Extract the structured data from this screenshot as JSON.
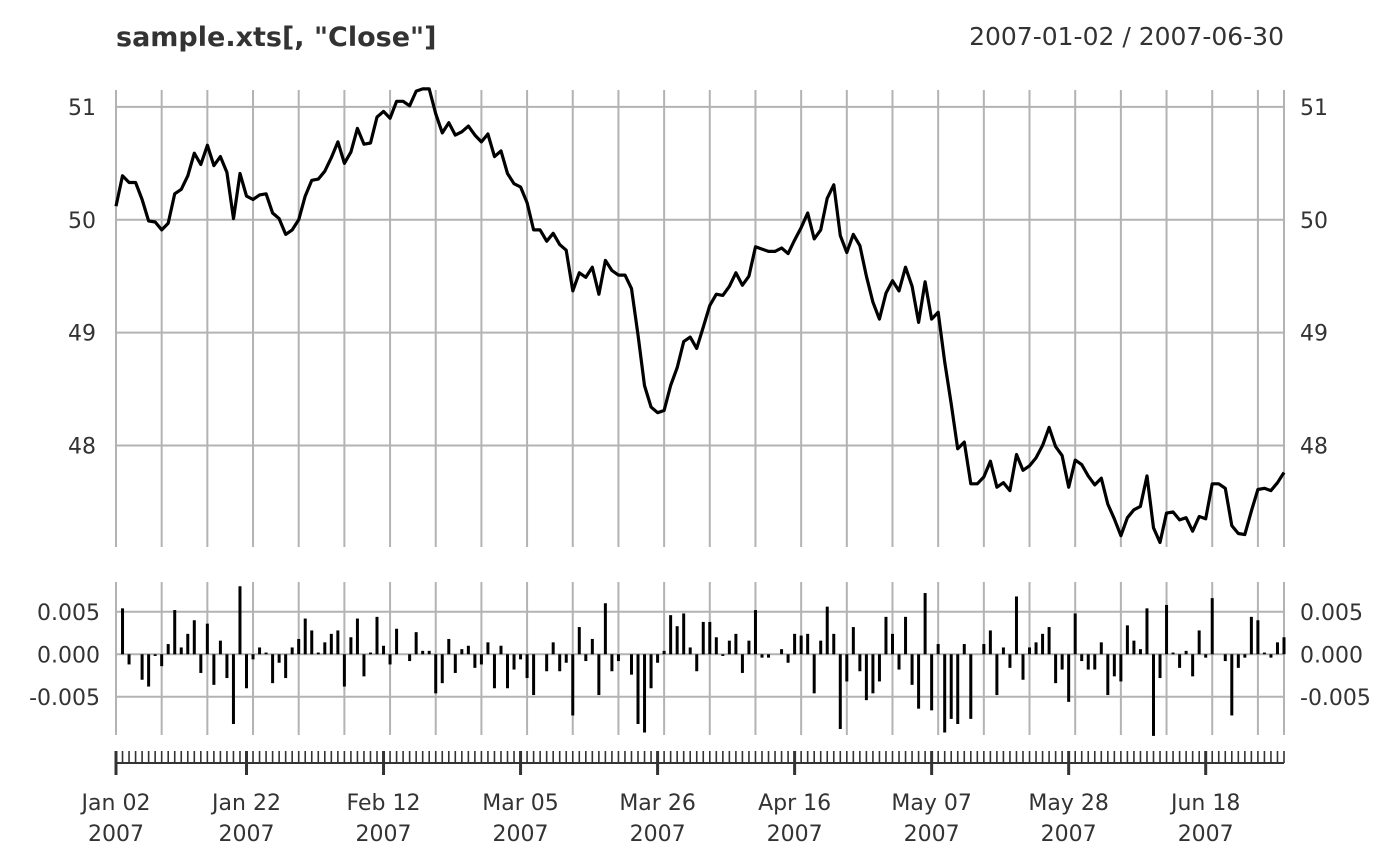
{
  "header": {
    "title": "sample.xts[, \"Close\"]",
    "date_range": "2007-01-02 / 2007-06-30"
  },
  "colors": {
    "line": "#000000",
    "grid": "#b3b3b3",
    "text": "#333333",
    "axis": "#333333"
  },
  "chart_data": [
    {
      "type": "line",
      "title": "sample.xts[, \"Close\"]",
      "subtitle": "2007-01-02 / 2007-06-30",
      "grid": true,
      "ylim": [
        47.1,
        51.15
      ],
      "ytick_values": [
        48,
        49,
        50,
        51
      ],
      "ytick_labels": [
        "48",
        "49",
        "50",
        "51"
      ],
      "xtick_dates": [
        "2007-01-02",
        "2007-01-22",
        "2007-02-12",
        "2007-03-05",
        "2007-03-26",
        "2007-04-16",
        "2007-05-07",
        "2007-05-28",
        "2007-06-18"
      ],
      "xtick_labels": [
        "Jan 02\n2007",
        "Jan 22\n2007",
        "Feb 12\n2007",
        "Mar 05\n2007",
        "Mar 26\n2007",
        "Apr 16\n2007",
        "May 07\n2007",
        "May 28\n2007",
        "Jun 18\n2007"
      ],
      "x": [
        "2007-01-02",
        "2007-01-03",
        "2007-01-04",
        "2007-01-05",
        "2007-01-06",
        "2007-01-07",
        "2007-01-08",
        "2007-01-09",
        "2007-01-10",
        "2007-01-11",
        "2007-01-12",
        "2007-01-13",
        "2007-01-14",
        "2007-01-15",
        "2007-01-16",
        "2007-01-17",
        "2007-01-18",
        "2007-01-19",
        "2007-01-20",
        "2007-01-21",
        "2007-01-22",
        "2007-01-23",
        "2007-01-24",
        "2007-01-25",
        "2007-01-26",
        "2007-01-27",
        "2007-01-28",
        "2007-01-29",
        "2007-01-30",
        "2007-01-31",
        "2007-02-01",
        "2007-02-02",
        "2007-02-03",
        "2007-02-04",
        "2007-02-05",
        "2007-02-06",
        "2007-02-07",
        "2007-02-08",
        "2007-02-09",
        "2007-02-10",
        "2007-02-11",
        "2007-02-12",
        "2007-02-13",
        "2007-02-14",
        "2007-02-15",
        "2007-02-16",
        "2007-02-17",
        "2007-02-18",
        "2007-02-19",
        "2007-02-20",
        "2007-02-21",
        "2007-02-22",
        "2007-02-23",
        "2007-02-24",
        "2007-02-25",
        "2007-02-26",
        "2007-02-27",
        "2007-02-28",
        "2007-03-01",
        "2007-03-02",
        "2007-03-03",
        "2007-03-04",
        "2007-03-05",
        "2007-03-06",
        "2007-03-07",
        "2007-03-08",
        "2007-03-09",
        "2007-03-10",
        "2007-03-11",
        "2007-03-12",
        "2007-03-13",
        "2007-03-14",
        "2007-03-15",
        "2007-03-16",
        "2007-03-17",
        "2007-03-18",
        "2007-03-19",
        "2007-03-20",
        "2007-03-21",
        "2007-03-22",
        "2007-03-23",
        "2007-03-24",
        "2007-03-25",
        "2007-03-26",
        "2007-03-27",
        "2007-03-28",
        "2007-03-29",
        "2007-03-30",
        "2007-03-31",
        "2007-04-01",
        "2007-04-02",
        "2007-04-03",
        "2007-04-04",
        "2007-04-05",
        "2007-04-06",
        "2007-04-07",
        "2007-04-08",
        "2007-04-09",
        "2007-04-10",
        "2007-04-11",
        "2007-04-12",
        "2007-04-13",
        "2007-04-14",
        "2007-04-15",
        "2007-04-16",
        "2007-04-17",
        "2007-04-18",
        "2007-04-19",
        "2007-04-20",
        "2007-04-21",
        "2007-04-22",
        "2007-04-23",
        "2007-04-24",
        "2007-04-25",
        "2007-04-26",
        "2007-04-27",
        "2007-04-28",
        "2007-04-29",
        "2007-04-30",
        "2007-05-01",
        "2007-05-02",
        "2007-05-03",
        "2007-05-04",
        "2007-05-05",
        "2007-05-06",
        "2007-05-07",
        "2007-05-08",
        "2007-05-09",
        "2007-05-10",
        "2007-05-11",
        "2007-05-12",
        "2007-05-13",
        "2007-05-14",
        "2007-05-15",
        "2007-05-16",
        "2007-05-17",
        "2007-05-18",
        "2007-05-19",
        "2007-05-20",
        "2007-05-21",
        "2007-05-22",
        "2007-05-23",
        "2007-05-24",
        "2007-05-25",
        "2007-05-26",
        "2007-05-27",
        "2007-05-28",
        "2007-05-29",
        "2007-05-30",
        "2007-05-31",
        "2007-06-01",
        "2007-06-02",
        "2007-06-03",
        "2007-06-04",
        "2007-06-05",
        "2007-06-06",
        "2007-06-07",
        "2007-06-08",
        "2007-06-09",
        "2007-06-10",
        "2007-06-11",
        "2007-06-12",
        "2007-06-13",
        "2007-06-14",
        "2007-06-15",
        "2007-06-16",
        "2007-06-17",
        "2007-06-18",
        "2007-06-19",
        "2007-06-20",
        "2007-06-21",
        "2007-06-22",
        "2007-06-23",
        "2007-06-24",
        "2007-06-25",
        "2007-06-26",
        "2007-06-27",
        "2007-06-28",
        "2007-06-29",
        "2007-06-30"
      ],
      "y": [
        50.12,
        50.39,
        50.33,
        50.33,
        50.18,
        49.99,
        49.98,
        49.91,
        49.97,
        50.23,
        50.27,
        50.39,
        50.59,
        50.49,
        50.66,
        50.48,
        50.56,
        50.42,
        50.01,
        50.41,
        50.21,
        50.18,
        50.22,
        50.23,
        50.06,
        50.01,
        49.87,
        49.91,
        50.0,
        50.21,
        50.35,
        50.36,
        50.43,
        50.55,
        50.69,
        50.5,
        50.6,
        50.81,
        50.67,
        50.68,
        50.91,
        50.96,
        50.9,
        51.05,
        51.05,
        51.01,
        51.14,
        51.16,
        51.16,
        50.94,
        50.77,
        50.86,
        50.75,
        50.78,
        50.83,
        50.75,
        50.69,
        50.76,
        50.56,
        50.61,
        50.41,
        50.32,
        50.29,
        50.15,
        49.91,
        49.91,
        49.81,
        49.88,
        49.78,
        49.73,
        49.37,
        49.53,
        49.49,
        49.58,
        49.34,
        49.64,
        49.55,
        49.51,
        49.51,
        49.39,
        48.98,
        48.53,
        48.34,
        48.29,
        48.31,
        48.53,
        48.69,
        48.92,
        48.96,
        48.86,
        49.05,
        49.24,
        49.34,
        49.33,
        49.41,
        49.53,
        49.42,
        49.5,
        49.76,
        49.74,
        49.72,
        49.72,
        49.75,
        49.7,
        49.82,
        49.93,
        50.06,
        49.83,
        49.91,
        50.19,
        50.31,
        49.86,
        49.71,
        49.87,
        49.77,
        49.5,
        49.27,
        49.12,
        49.35,
        49.46,
        49.37,
        49.58,
        49.41,
        49.09,
        49.45,
        49.12,
        49.18,
        48.74,
        48.37,
        47.97,
        48.03,
        47.66,
        47.66,
        47.72,
        47.86,
        47.63,
        47.67,
        47.6,
        47.92,
        47.78,
        47.82,
        47.89,
        48.0,
        48.16,
        47.99,
        47.91,
        47.63,
        47.87,
        47.83,
        47.73,
        47.65,
        47.71,
        47.48,
        47.35,
        47.2,
        47.36,
        47.43,
        47.46,
        47.73,
        47.27,
        47.14,
        47.4,
        47.41,
        47.34,
        47.36,
        47.24,
        47.37,
        47.35,
        47.66,
        47.66,
        47.62,
        47.29,
        47.22,
        47.21,
        47.42,
        47.61,
        47.62,
        47.6,
        47.67,
        47.76
      ]
    },
    {
      "type": "bar",
      "title": "",
      "grid": true,
      "ylim": [
        -0.0095,
        0.0085
      ],
      "ytick_values": [
        -0.005,
        0.0,
        0.005
      ],
      "ytick_labels": [
        "-0.005",
        "0.000",
        "0.005"
      ],
      "xtick_dates": [
        "2007-01-02",
        "2007-01-22",
        "2007-02-12",
        "2007-03-05",
        "2007-03-26",
        "2007-04-16",
        "2007-05-07",
        "2007-05-28",
        "2007-06-18"
      ],
      "x": [
        "2007-01-02",
        "2007-01-03",
        "2007-01-04",
        "2007-01-05",
        "2007-01-06",
        "2007-01-07",
        "2007-01-08",
        "2007-01-09",
        "2007-01-10",
        "2007-01-11",
        "2007-01-12",
        "2007-01-13",
        "2007-01-14",
        "2007-01-15",
        "2007-01-16",
        "2007-01-17",
        "2007-01-18",
        "2007-01-19",
        "2007-01-20",
        "2007-01-21",
        "2007-01-22",
        "2007-01-23",
        "2007-01-24",
        "2007-01-25",
        "2007-01-26",
        "2007-01-27",
        "2007-01-28",
        "2007-01-29",
        "2007-01-30",
        "2007-01-31",
        "2007-02-01",
        "2007-02-02",
        "2007-02-03",
        "2007-02-04",
        "2007-02-05",
        "2007-02-06",
        "2007-02-07",
        "2007-02-08",
        "2007-02-09",
        "2007-02-10",
        "2007-02-11",
        "2007-02-12",
        "2007-02-13",
        "2007-02-14",
        "2007-02-15",
        "2007-02-16",
        "2007-02-17",
        "2007-02-18",
        "2007-02-19",
        "2007-02-20",
        "2007-02-21",
        "2007-02-22",
        "2007-02-23",
        "2007-02-24",
        "2007-02-25",
        "2007-02-26",
        "2007-02-27",
        "2007-02-28",
        "2007-03-01",
        "2007-03-02",
        "2007-03-03",
        "2007-03-04",
        "2007-03-05",
        "2007-03-06",
        "2007-03-07",
        "2007-03-08",
        "2007-03-09",
        "2007-03-10",
        "2007-03-11",
        "2007-03-12",
        "2007-03-13",
        "2007-03-14",
        "2007-03-15",
        "2007-03-16",
        "2007-03-17",
        "2007-03-18",
        "2007-03-19",
        "2007-03-20",
        "2007-03-21",
        "2007-03-22",
        "2007-03-23",
        "2007-03-24",
        "2007-03-25",
        "2007-03-26",
        "2007-03-27",
        "2007-03-28",
        "2007-03-29",
        "2007-03-30",
        "2007-03-31",
        "2007-04-01",
        "2007-04-02",
        "2007-04-03",
        "2007-04-04",
        "2007-04-05",
        "2007-04-06",
        "2007-04-07",
        "2007-04-08",
        "2007-04-09",
        "2007-04-10",
        "2007-04-11",
        "2007-04-12",
        "2007-04-13",
        "2007-04-14",
        "2007-04-15",
        "2007-04-16",
        "2007-04-17",
        "2007-04-18",
        "2007-04-19",
        "2007-04-20",
        "2007-04-21",
        "2007-04-22",
        "2007-04-23",
        "2007-04-24",
        "2007-04-25",
        "2007-04-26",
        "2007-04-27",
        "2007-04-28",
        "2007-04-29",
        "2007-04-30",
        "2007-05-01",
        "2007-05-02",
        "2007-05-03",
        "2007-05-04",
        "2007-05-05",
        "2007-05-06",
        "2007-05-07",
        "2007-05-08",
        "2007-05-09",
        "2007-05-10",
        "2007-05-11",
        "2007-05-12",
        "2007-05-13",
        "2007-05-14",
        "2007-05-15",
        "2007-05-16",
        "2007-05-17",
        "2007-05-18",
        "2007-05-19",
        "2007-05-20",
        "2007-05-21",
        "2007-05-22",
        "2007-05-23",
        "2007-05-24",
        "2007-05-25",
        "2007-05-26",
        "2007-05-27",
        "2007-05-28",
        "2007-05-29",
        "2007-05-30",
        "2007-05-31",
        "2007-06-01",
        "2007-06-02",
        "2007-06-03",
        "2007-06-04",
        "2007-06-05",
        "2007-06-06",
        "2007-06-07",
        "2007-06-08",
        "2007-06-09",
        "2007-06-10",
        "2007-06-11",
        "2007-06-12",
        "2007-06-13",
        "2007-06-14",
        "2007-06-15",
        "2007-06-16",
        "2007-06-17",
        "2007-06-18",
        "2007-06-19",
        "2007-06-20",
        "2007-06-21",
        "2007-06-22",
        "2007-06-23",
        "2007-06-24",
        "2007-06-25",
        "2007-06-26",
        "2007-06-27",
        "2007-06-28",
        "2007-06-29",
        "2007-06-30"
      ],
      "values": [
        0.0,
        0.0054,
        -0.0012,
        0.0,
        -0.003,
        -0.0038,
        -0.0002,
        -0.0014,
        0.0012,
        0.0052,
        0.0008,
        0.0024,
        0.004,
        -0.0022,
        0.0036,
        -0.0036,
        0.0016,
        -0.0028,
        -0.0082,
        0.008,
        -0.004,
        -0.0006,
        0.0008,
        0.0002,
        -0.0034,
        -0.001,
        -0.0028,
        0.0008,
        0.0018,
        0.0042,
        0.0028,
        0.0002,
        0.0014,
        0.0024,
        0.0028,
        -0.0038,
        0.002,
        0.0042,
        -0.0026,
        0.0002,
        0.0044,
        0.001,
        -0.0012,
        0.003,
        0.0,
        -0.0008,
        0.0026,
        0.0004,
        0.0004,
        -0.0046,
        -0.0034,
        0.0018,
        -0.0022,
        0.0006,
        0.001,
        -0.0016,
        -0.0012,
        0.0014,
        -0.004,
        0.001,
        -0.004,
        -0.0018,
        -0.0006,
        -0.0028,
        -0.0048,
        0.0,
        -0.002,
        0.0014,
        -0.002,
        -0.001,
        -0.0072,
        0.0032,
        -0.0008,
        0.0018,
        -0.0048,
        0.006,
        -0.002,
        -0.0008,
        0.0,
        -0.0024,
        -0.0082,
        -0.0092,
        -0.004,
        -0.001,
        0.0004,
        0.0046,
        0.0033,
        0.0048,
        0.0008,
        -0.002,
        0.0038,
        0.0038,
        0.002,
        -0.0002,
        0.0016,
        0.0024,
        -0.0022,
        0.0016,
        0.0052,
        -0.0004,
        -0.0004,
        0.0,
        0.0006,
        -0.001,
        0.0024,
        0.0022,
        0.0024,
        -0.0046,
        0.0016,
        0.0056,
        0.0024,
        -0.0088,
        -0.0032,
        0.0032,
        -0.002,
        -0.0054,
        -0.0046,
        -0.0032,
        0.0044,
        0.0024,
        -0.0018,
        0.0044,
        -0.0036,
        -0.0064,
        0.0072,
        -0.0066,
        0.0012,
        -0.0092,
        -0.0076,
        -0.0082,
        0.0012,
        -0.0076,
        0.0,
        0.0012,
        0.0028,
        -0.0048,
        0.0008,
        -0.0016,
        0.0068,
        -0.003,
        0.0008,
        0.0014,
        0.0024,
        0.0032,
        -0.0034,
        -0.0018,
        -0.0056,
        0.0048,
        -0.0008,
        -0.0018,
        -0.0018,
        0.0014,
        -0.0048,
        -0.0026,
        -0.0032,
        0.0034,
        0.0016,
        0.0006,
        0.0054,
        -0.0096,
        -0.0028,
        0.0058,
        0.0002,
        -0.0016,
        0.0004,
        -0.0026,
        0.0028,
        -0.0004,
        0.0066,
        0.0,
        -0.0008,
        -0.0072,
        -0.0016,
        -0.0004,
        0.0044,
        0.004,
        0.0002,
        -0.0004,
        0.0014,
        0.002
      ]
    }
  ]
}
